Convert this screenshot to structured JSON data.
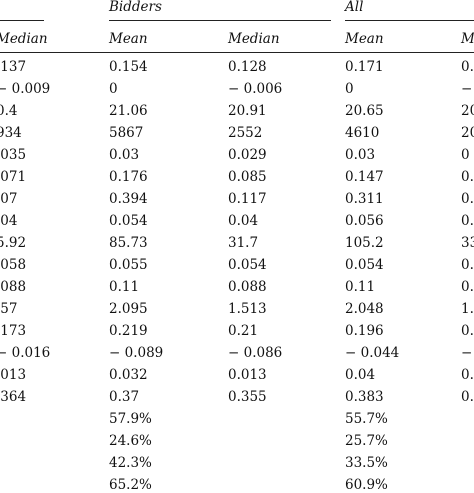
{
  "groups": {
    "bidders": "Bidders",
    "all": "All"
  },
  "columns": {
    "left_median": "Median",
    "bidders_mean": "Mean",
    "bidders_median": "Median",
    "all_mean": "Mean",
    "all_median": "M"
  },
  "rows": [
    {
      "a": ".137",
      "b": "0.154",
      "c": "0.128",
      "d": "0.171",
      "e": "0."
    },
    {
      "a": "− 0.009",
      "b": "0",
      "c": "− 0.006",
      "d": "0",
      "e": "−"
    },
    {
      "a": "0.4",
      "b": "21.06",
      "c": "20.91",
      "d": "20.65",
      "e": "20"
    },
    {
      "a": "934",
      "b": "5867",
      "c": "2552",
      "d": "4610",
      "e": "20"
    },
    {
      "a": ".035",
      "b": "0.03",
      "c": "0.029",
      "d": "0.03",
      "e": "0"
    },
    {
      "a": ".071",
      "b": "0.176",
      "c": "0.085",
      "d": "0.147",
      "e": "0."
    },
    {
      "a": ".07",
      "b": "0.394",
      "c": "0.117",
      "d": "0.311",
      "e": "0."
    },
    {
      "a": ".04",
      "b": "0.054",
      "c": "0.04",
      "d": "0.056",
      "e": "0."
    },
    {
      "a": "5.92",
      "b": "85.73",
      "c": "31.7",
      "d": "105.2",
      "e": "33"
    },
    {
      "a": ".058",
      "b": "0.055",
      "c": "0.054",
      "d": "0.054",
      "e": "0."
    },
    {
      "a": ".088",
      "b": "0.11",
      "c": "0.088",
      "d": "0.11",
      "e": "0."
    },
    {
      "a": ".57",
      "b": "2.095",
      "c": "1.513",
      "d": "2.048",
      "e": "1."
    },
    {
      "a": ".173",
      "b": "0.219",
      "c": "0.21",
      "d": "0.196",
      "e": "0."
    },
    {
      "a": "− 0.016",
      "b": "− 0.089",
      "c": "− 0.086",
      "d": "− 0.044",
      "e": "−"
    },
    {
      "a": ".013",
      "b": "0.032",
      "c": "0.013",
      "d": "0.04",
      "e": "0."
    },
    {
      "a": ".364",
      "b": "0.37",
      "c": "0.355",
      "d": "0.383",
      "e": "0."
    },
    {
      "a": "",
      "b": "57.9%",
      "c": "",
      "d": "55.7%",
      "e": ""
    },
    {
      "a": "",
      "b": "24.6%",
      "c": "",
      "d": "25.7%",
      "e": ""
    },
    {
      "a": "",
      "b": "42.3%",
      "c": "",
      "d": "33.5%",
      "e": ""
    },
    {
      "a": "",
      "b": "65.2%",
      "c": "",
      "d": "60.9%",
      "e": ""
    }
  ]
}
